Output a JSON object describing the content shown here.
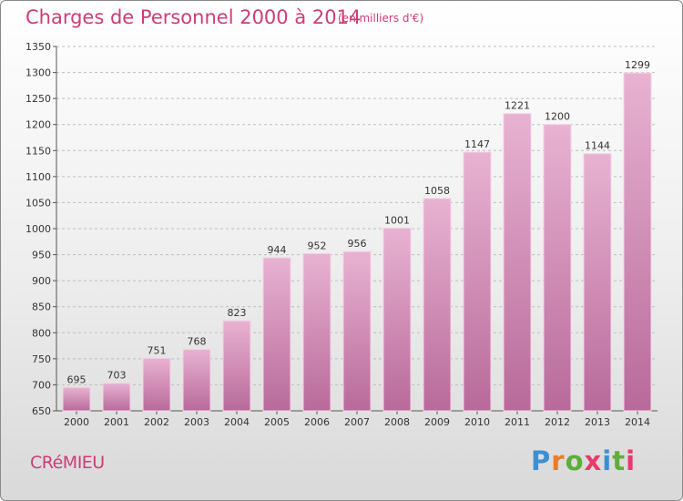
{
  "header": {
    "title": "Charges de Personnel 2000 à 2014",
    "subtitle": "(en milliers d'€)"
  },
  "footer": {
    "commune": "CRéMIEU",
    "logo": "Proxiti"
  },
  "colors": {
    "title": "#cc3d77",
    "bar_top": "#e8b2d2",
    "bar_bottom": "#b86a9a",
    "logo_letters": [
      "#3c8fd1",
      "#e87d2b",
      "#5fad3a",
      "#e83b6b",
      "#3c8fd1",
      "#5fad3a",
      "#e83b6b"
    ]
  },
  "chart_data": {
    "type": "bar",
    "categories": [
      "2000",
      "2001",
      "2002",
      "2003",
      "2004",
      "2005",
      "2006",
      "2007",
      "2008",
      "2009",
      "2010",
      "2011",
      "2012",
      "2013",
      "2014"
    ],
    "values": [
      695,
      703,
      751,
      768,
      823,
      944,
      952,
      956,
      1001,
      1058,
      1147,
      1221,
      1200,
      1144,
      1299
    ],
    "ylim": [
      650,
      1350
    ],
    "yticks": [
      650,
      700,
      750,
      800,
      850,
      900,
      950,
      1000,
      1050,
      1100,
      1150,
      1200,
      1250,
      1300,
      1350
    ],
    "grid": true,
    "data_labels": true
  }
}
